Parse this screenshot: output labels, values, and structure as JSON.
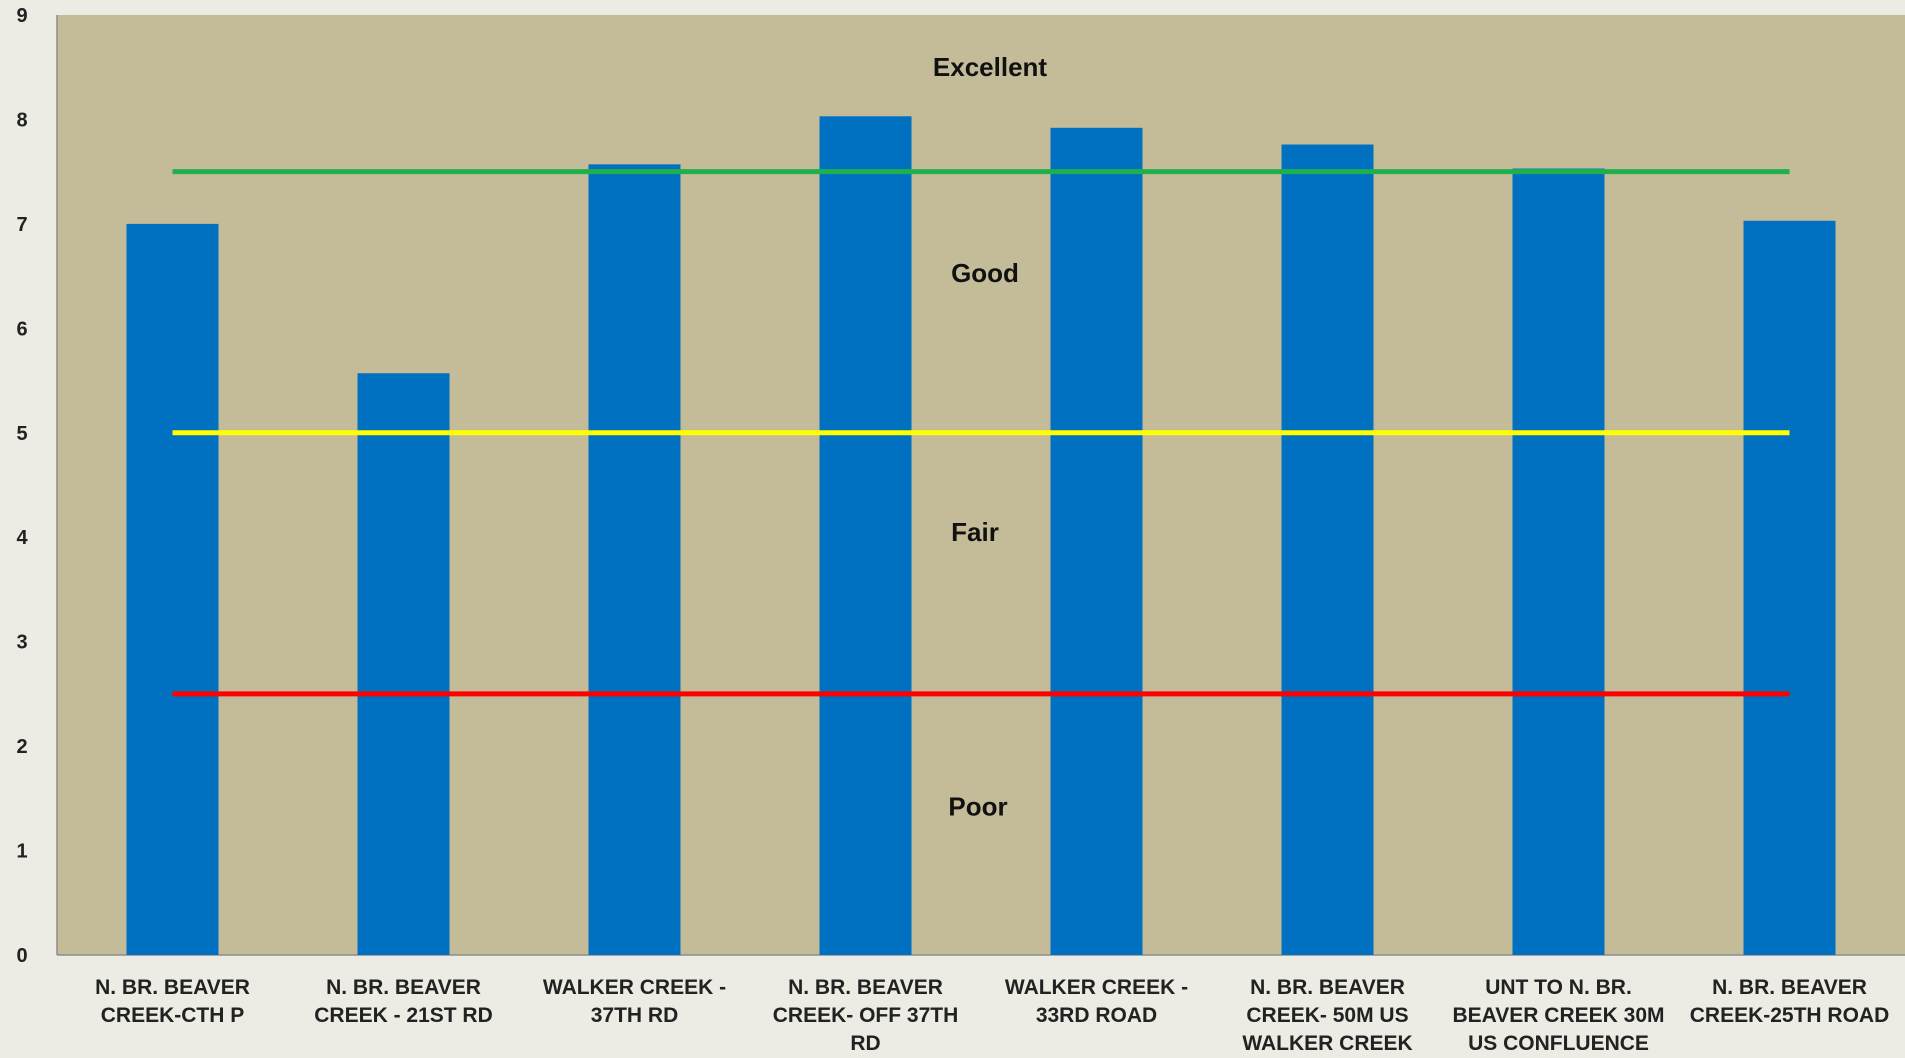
{
  "chart_data": {
    "type": "bar",
    "categories": [
      [
        "N. BR. BEAVER",
        "CREEK-CTH P"
      ],
      [
        "N. BR. BEAVER",
        "CREEK - 21ST RD"
      ],
      [
        "WALKER CREEK -",
        "37TH RD"
      ],
      [
        "N. BR. BEAVER",
        "CREEK- OFF 37TH",
        "RD"
      ],
      [
        "WALKER CREEK -",
        "33RD ROAD"
      ],
      [
        "N. BR. BEAVER",
        "CREEK- 50M US",
        "WALKER CREEK"
      ],
      [
        "UNT TO N. BR.",
        "BEAVER CREEK 30M",
        "US CONFLUENCE"
      ],
      [
        "N. BR. BEAVER",
        "CREEK-25TH ROAD"
      ]
    ],
    "values": [
      7.0,
      5.57,
      7.57,
      8.03,
      7.92,
      7.76,
      7.53,
      7.03
    ],
    "ylim": [
      0,
      9
    ],
    "yticks": [
      0,
      1,
      2,
      3,
      4,
      5,
      6,
      7,
      8,
      9
    ],
    "title": "",
    "xlabel": "",
    "ylabel": "",
    "grid": false,
    "thresholds": [
      {
        "value": 7.5,
        "color": "#1db04b"
      },
      {
        "value": 5.0,
        "color": "#ffff00"
      },
      {
        "value": 2.5,
        "color": "#ff0000"
      }
    ],
    "bands": [
      {
        "label": "Excellent",
        "value": 8.5
      },
      {
        "label": "Good",
        "value": 6.53
      },
      {
        "label": "Fair",
        "value": 4.05
      },
      {
        "label": "Poor",
        "value": 1.42
      }
    ],
    "colors": {
      "bar": "#0070c0",
      "plot_background": "#c4bc98",
      "page_background": "#ecebe4"
    }
  }
}
